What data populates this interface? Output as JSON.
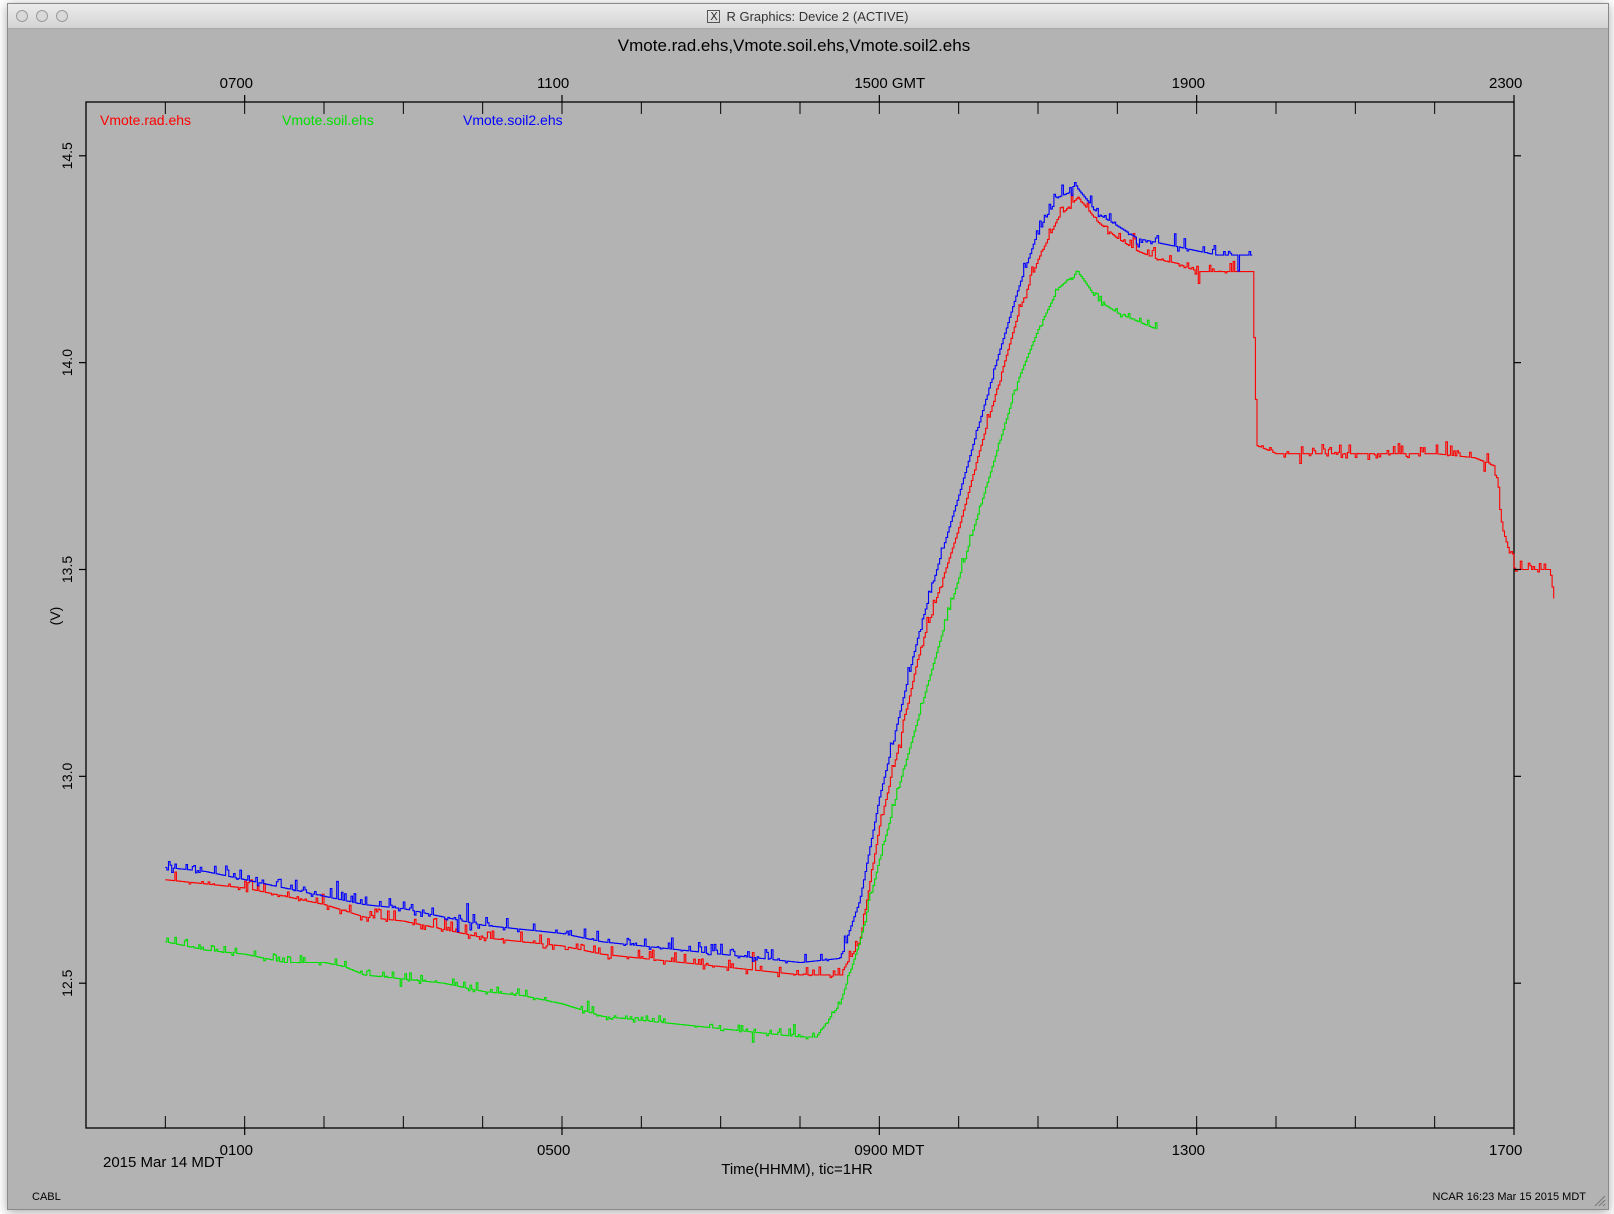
{
  "window": {
    "title": "R Graphics: Device 2 (ACTIVE)",
    "title_icon": "x11-icon"
  },
  "chart_data": {
    "type": "line",
    "title": "Vmote.rad.ehs,Vmote.soil.ehs,Vmote.soil2.ehs",
    "ylabel": "(V)",
    "xlabel": "Time(HHMM), tic=1HR",
    "date_label": "2015 Mar 14 MDT",
    "footer_left": "CABL",
    "footer_right": "NCAR 16:23 Mar 15 2015 MDT",
    "ylim": [
      12.15,
      14.63
    ],
    "xlim_mdt_hours": [
      -1.0,
      17.0
    ],
    "yticks": [
      12.5,
      13.0,
      13.5,
      14.0,
      14.5
    ],
    "ytick_labels": [
      "12.5",
      "13.0",
      "13.5",
      "14.0",
      "14.5"
    ],
    "bottom_axis": {
      "zone": "MDT",
      "labels": [
        {
          "hour": 1,
          "text": "0100"
        },
        {
          "hour": 5,
          "text": "0500"
        },
        {
          "hour": 9,
          "text": "0900 MDT"
        },
        {
          "hour": 13,
          "text": "1300"
        },
        {
          "hour": 17,
          "text": "1700"
        }
      ]
    },
    "top_axis": {
      "zone": "GMT",
      "offset_hours": 6,
      "labels": [
        {
          "hour": 7,
          "text": "0700"
        },
        {
          "hour": 11,
          "text": "1100"
        },
        {
          "hour": 15,
          "text": "1500 GMT"
        },
        {
          "hour": 19,
          "text": "1900"
        },
        {
          "hour": 23,
          "text": "2300"
        }
      ]
    },
    "legend_placement": "top-left",
    "grid": false,
    "series": [
      {
        "name": "Vmote.rad.ehs",
        "color": "#ff0000",
        "points": [
          [
            0.0,
            12.75
          ],
          [
            0.5,
            12.74
          ],
          [
            1.0,
            12.73
          ],
          [
            1.5,
            12.71
          ],
          [
            2.0,
            12.69
          ],
          [
            2.5,
            12.66
          ],
          [
            3.0,
            12.65
          ],
          [
            3.5,
            12.63
          ],
          [
            4.0,
            12.61
          ],
          [
            4.5,
            12.6
          ],
          [
            5.0,
            12.59
          ],
          [
            5.5,
            12.57
          ],
          [
            6.0,
            12.56
          ],
          [
            6.5,
            12.55
          ],
          [
            7.0,
            12.54
          ],
          [
            7.5,
            12.53
          ],
          [
            8.0,
            12.52
          ],
          [
            8.5,
            12.52
          ],
          [
            8.75,
            12.6
          ],
          [
            9.0,
            12.88
          ],
          [
            9.25,
            13.08
          ],
          [
            9.5,
            13.3
          ],
          [
            9.75,
            13.45
          ],
          [
            10.0,
            13.6
          ],
          [
            10.25,
            13.78
          ],
          [
            10.5,
            13.95
          ],
          [
            10.75,
            14.12
          ],
          [
            11.0,
            14.25
          ],
          [
            11.25,
            14.35
          ],
          [
            11.5,
            14.4
          ],
          [
            11.75,
            14.34
          ],
          [
            12.0,
            14.3
          ],
          [
            12.25,
            14.27
          ],
          [
            12.5,
            14.25
          ],
          [
            12.75,
            14.24
          ],
          [
            13.0,
            14.22
          ],
          [
            13.25,
            14.22
          ],
          [
            13.5,
            14.22
          ],
          [
            13.7,
            14.22
          ],
          [
            13.75,
            13.8
          ],
          [
            14.0,
            13.78
          ],
          [
            14.5,
            13.78
          ],
          [
            15.0,
            13.78
          ],
          [
            15.5,
            13.78
          ],
          [
            16.0,
            13.78
          ],
          [
            16.5,
            13.77
          ],
          [
            16.75,
            13.75
          ],
          [
            16.85,
            13.6
          ],
          [
            17.0,
            13.5
          ],
          [
            17.25,
            13.5
          ],
          [
            17.45,
            13.5
          ],
          [
            17.5,
            13.43
          ]
        ]
      },
      {
        "name": "Vmote.soil.ehs",
        "color": "#00e000",
        "points": [
          [
            0.0,
            12.6
          ],
          [
            0.5,
            12.58
          ],
          [
            1.0,
            12.57
          ],
          [
            1.5,
            12.55
          ],
          [
            2.0,
            12.55
          ],
          [
            2.25,
            12.54
          ],
          [
            2.5,
            12.52
          ],
          [
            3.0,
            12.51
          ],
          [
            3.5,
            12.5
          ],
          [
            4.0,
            12.48
          ],
          [
            4.5,
            12.47
          ],
          [
            5.0,
            12.45
          ],
          [
            5.5,
            12.42
          ],
          [
            6.0,
            12.41
          ],
          [
            6.5,
            12.4
          ],
          [
            7.0,
            12.39
          ],
          [
            7.5,
            12.38
          ],
          [
            8.0,
            12.37
          ],
          [
            8.2,
            12.37
          ],
          [
            8.5,
            12.45
          ],
          [
            8.75,
            12.6
          ],
          [
            9.0,
            12.8
          ],
          [
            9.25,
            12.98
          ],
          [
            9.5,
            13.15
          ],
          [
            9.75,
            13.32
          ],
          [
            10.0,
            13.48
          ],
          [
            10.25,
            13.64
          ],
          [
            10.5,
            13.8
          ],
          [
            10.75,
            13.96
          ],
          [
            11.0,
            14.08
          ],
          [
            11.25,
            14.18
          ],
          [
            11.5,
            14.22
          ],
          [
            11.75,
            14.15
          ],
          [
            12.0,
            14.12
          ],
          [
            12.25,
            14.1
          ],
          [
            12.5,
            14.08
          ]
        ]
      },
      {
        "name": "Vmote.soil2.ehs",
        "color": "#0000ff",
        "points": [
          [
            0.0,
            12.78
          ],
          [
            0.5,
            12.77
          ],
          [
            1.0,
            12.75
          ],
          [
            1.5,
            12.73
          ],
          [
            2.0,
            12.71
          ],
          [
            2.5,
            12.69
          ],
          [
            3.0,
            12.68
          ],
          [
            3.5,
            12.66
          ],
          [
            4.0,
            12.64
          ],
          [
            4.5,
            12.63
          ],
          [
            5.0,
            12.62
          ],
          [
            5.5,
            12.6
          ],
          [
            6.0,
            12.59
          ],
          [
            6.5,
            12.58
          ],
          [
            7.0,
            12.57
          ],
          [
            7.5,
            12.56
          ],
          [
            8.0,
            12.55
          ],
          [
            8.5,
            12.56
          ],
          [
            8.75,
            12.7
          ],
          [
            9.0,
            12.95
          ],
          [
            9.25,
            13.15
          ],
          [
            9.5,
            13.35
          ],
          [
            9.75,
            13.52
          ],
          [
            10.0,
            13.68
          ],
          [
            10.25,
            13.85
          ],
          [
            10.5,
            14.02
          ],
          [
            10.75,
            14.18
          ],
          [
            11.0,
            14.32
          ],
          [
            11.25,
            14.4
          ],
          [
            11.5,
            14.42
          ],
          [
            11.75,
            14.36
          ],
          [
            12.0,
            14.33
          ],
          [
            12.25,
            14.3
          ],
          [
            12.5,
            14.29
          ],
          [
            12.75,
            14.28
          ],
          [
            13.0,
            14.27
          ],
          [
            13.25,
            14.26
          ],
          [
            13.5,
            14.26
          ],
          [
            13.7,
            14.26
          ]
        ]
      }
    ]
  }
}
